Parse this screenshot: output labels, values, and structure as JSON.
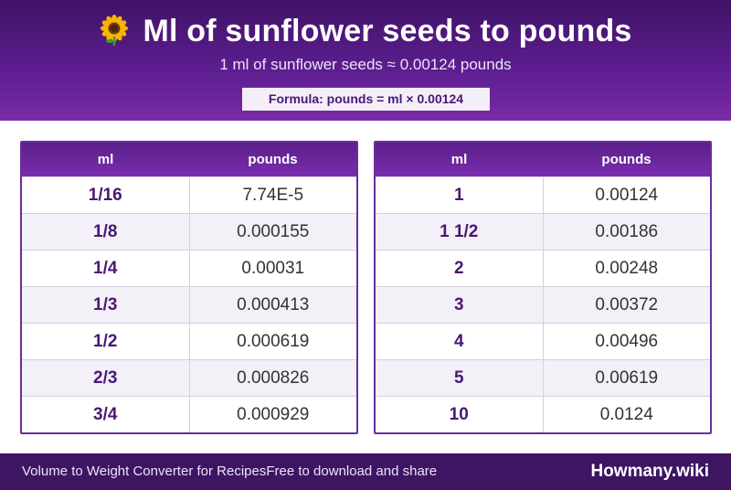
{
  "header": {
    "title": "Ml of sunflower seeds to pounds",
    "emoji_icon": "sunflower-icon",
    "subtitle": "1 ml of sunflower seeds ≈ 0.00124 pounds",
    "formula": "Formula: pounds = ml × 0.00124"
  },
  "colors": {
    "header_purple": "#5b1d8e",
    "footer_purple": "#3d1563",
    "accent_text": "#4a1875"
  },
  "tables": [
    {
      "columns": [
        "ml",
        "pounds"
      ],
      "rows": [
        {
          "ml": "1/16",
          "pounds": "7.74E-5"
        },
        {
          "ml": "1/8",
          "pounds": "0.000155"
        },
        {
          "ml": "1/4",
          "pounds": "0.00031"
        },
        {
          "ml": "1/3",
          "pounds": "0.000413"
        },
        {
          "ml": "1/2",
          "pounds": "0.000619"
        },
        {
          "ml": "2/3",
          "pounds": "0.000826"
        },
        {
          "ml": "3/4",
          "pounds": "0.000929"
        }
      ]
    },
    {
      "columns": [
        "ml",
        "pounds"
      ],
      "rows": [
        {
          "ml": "1",
          "pounds": "0.00124"
        },
        {
          "ml": "1 1/2",
          "pounds": "0.00186"
        },
        {
          "ml": "2",
          "pounds": "0.00248"
        },
        {
          "ml": "3",
          "pounds": "0.00372"
        },
        {
          "ml": "4",
          "pounds": "0.00496"
        },
        {
          "ml": "5",
          "pounds": "0.00619"
        },
        {
          "ml": "10",
          "pounds": "0.0124"
        }
      ]
    }
  ],
  "footer": {
    "left_text_1": "Volume to Weight Converter for Recipes",
    "left_text_2": "Free to download and share",
    "brand": "Howmany.wiki"
  }
}
